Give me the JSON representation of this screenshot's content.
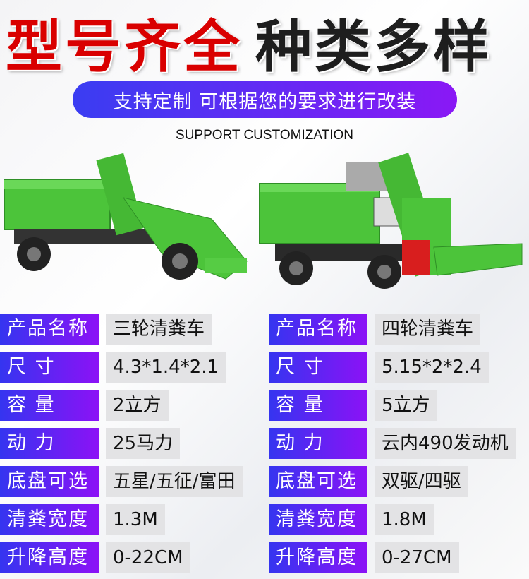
{
  "headline": {
    "red": "型号齐全",
    "black": "种类多样"
  },
  "banner": "支持定制 可根据您的要求进行改装",
  "subtitle": "SUPPORT CUSTOMIZATION",
  "colors": {
    "red": "#d90000",
    "gradient_start": "#3535f0",
    "gradient_end": "#8c12f6",
    "truck_green": "#4cc43a"
  },
  "specs": [
    {
      "label": "产品名称",
      "left": "三轮清粪车",
      "right": "四轮清粪车"
    },
    {
      "label": "尺 寸",
      "left": "4.3*1.4*2.1",
      "right": "5.15*2*2.4"
    },
    {
      "label": "容 量",
      "left": "2立方",
      "right": "5立方"
    },
    {
      "label": "动 力",
      "left": "25马力",
      "right": "云内490发动机"
    },
    {
      "label": "底盘可选",
      "left": "五星/五征/富田",
      "right": "双驱/四驱"
    },
    {
      "label": "清粪宽度",
      "left": "1.3M",
      "right": "1.8M"
    },
    {
      "label": "升降高度",
      "left": "0-22CM",
      "right": "0-27CM"
    }
  ]
}
